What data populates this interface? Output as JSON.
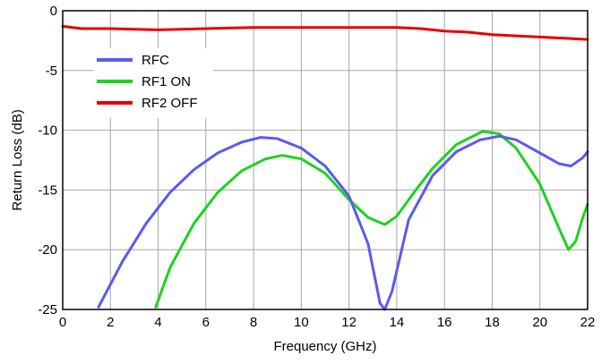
{
  "chart_data": {
    "type": "line",
    "title": "",
    "xlabel": "Frequency (GHz)",
    "ylabel": "Return Loss (dB)",
    "xlim": [
      0,
      22
    ],
    "ylim": [
      -25,
      0
    ],
    "xticks": [
      0,
      2,
      4,
      6,
      8,
      10,
      12,
      14,
      16,
      18,
      20,
      22
    ],
    "yticks": [
      0,
      -5,
      -10,
      -15,
      -20,
      -25
    ],
    "grid": true,
    "legend_position": "top-left",
    "series": [
      {
        "name": "RFC",
        "color": "#5a5af0",
        "x": [
          1.5,
          2.5,
          3.5,
          4.5,
          5.5,
          6.5,
          7.5,
          8.3,
          9.0,
          10.0,
          11.0,
          12.0,
          12.8,
          13.3,
          13.5,
          13.8,
          14.5,
          15.5,
          16.5,
          17.5,
          18.3,
          19.0,
          20.0,
          20.8,
          21.3,
          21.8,
          22.0
        ],
        "y": [
          -24.8,
          -21.0,
          -17.8,
          -15.2,
          -13.3,
          -11.9,
          -11.0,
          -10.6,
          -10.7,
          -11.5,
          -13.0,
          -15.5,
          -19.5,
          -24.5,
          -25.0,
          -23.5,
          -17.5,
          -13.8,
          -11.8,
          -10.8,
          -10.5,
          -10.8,
          -11.9,
          -12.8,
          -13.0,
          -12.3,
          -11.8
        ]
      },
      {
        "name": "RF1 ON",
        "color": "#1ed21e",
        "x": [
          3.9,
          4.5,
          5.5,
          6.5,
          7.5,
          8.5,
          9.2,
          10.0,
          11.0,
          12.0,
          12.8,
          13.5,
          14.0,
          14.8,
          15.5,
          16.5,
          17.6,
          18.3,
          19.0,
          20.0,
          20.8,
          21.2,
          21.5,
          21.8,
          22.0
        ],
        "y": [
          -24.8,
          -21.5,
          -17.8,
          -15.2,
          -13.4,
          -12.4,
          -12.1,
          -12.4,
          -13.6,
          -15.8,
          -17.3,
          -17.9,
          -17.2,
          -15.0,
          -13.2,
          -11.2,
          -10.1,
          -10.3,
          -11.5,
          -14.5,
          -18.2,
          -20.0,
          -19.3,
          -17.3,
          -16.2
        ]
      },
      {
        "name": "RF2 OFF",
        "color": "#e60000",
        "x": [
          0,
          0.8,
          2.0,
          4.0,
          6.0,
          8.0,
          10.0,
          12.0,
          14.0,
          15.0,
          16.0,
          17.0,
          18.0,
          19.0,
          20.0,
          21.0,
          22.0
        ],
        "y": [
          -1.3,
          -1.5,
          -1.5,
          -1.6,
          -1.5,
          -1.4,
          -1.4,
          -1.4,
          -1.4,
          -1.5,
          -1.7,
          -1.8,
          -2.0,
          -2.1,
          -2.2,
          -2.3,
          -2.4
        ]
      }
    ]
  }
}
